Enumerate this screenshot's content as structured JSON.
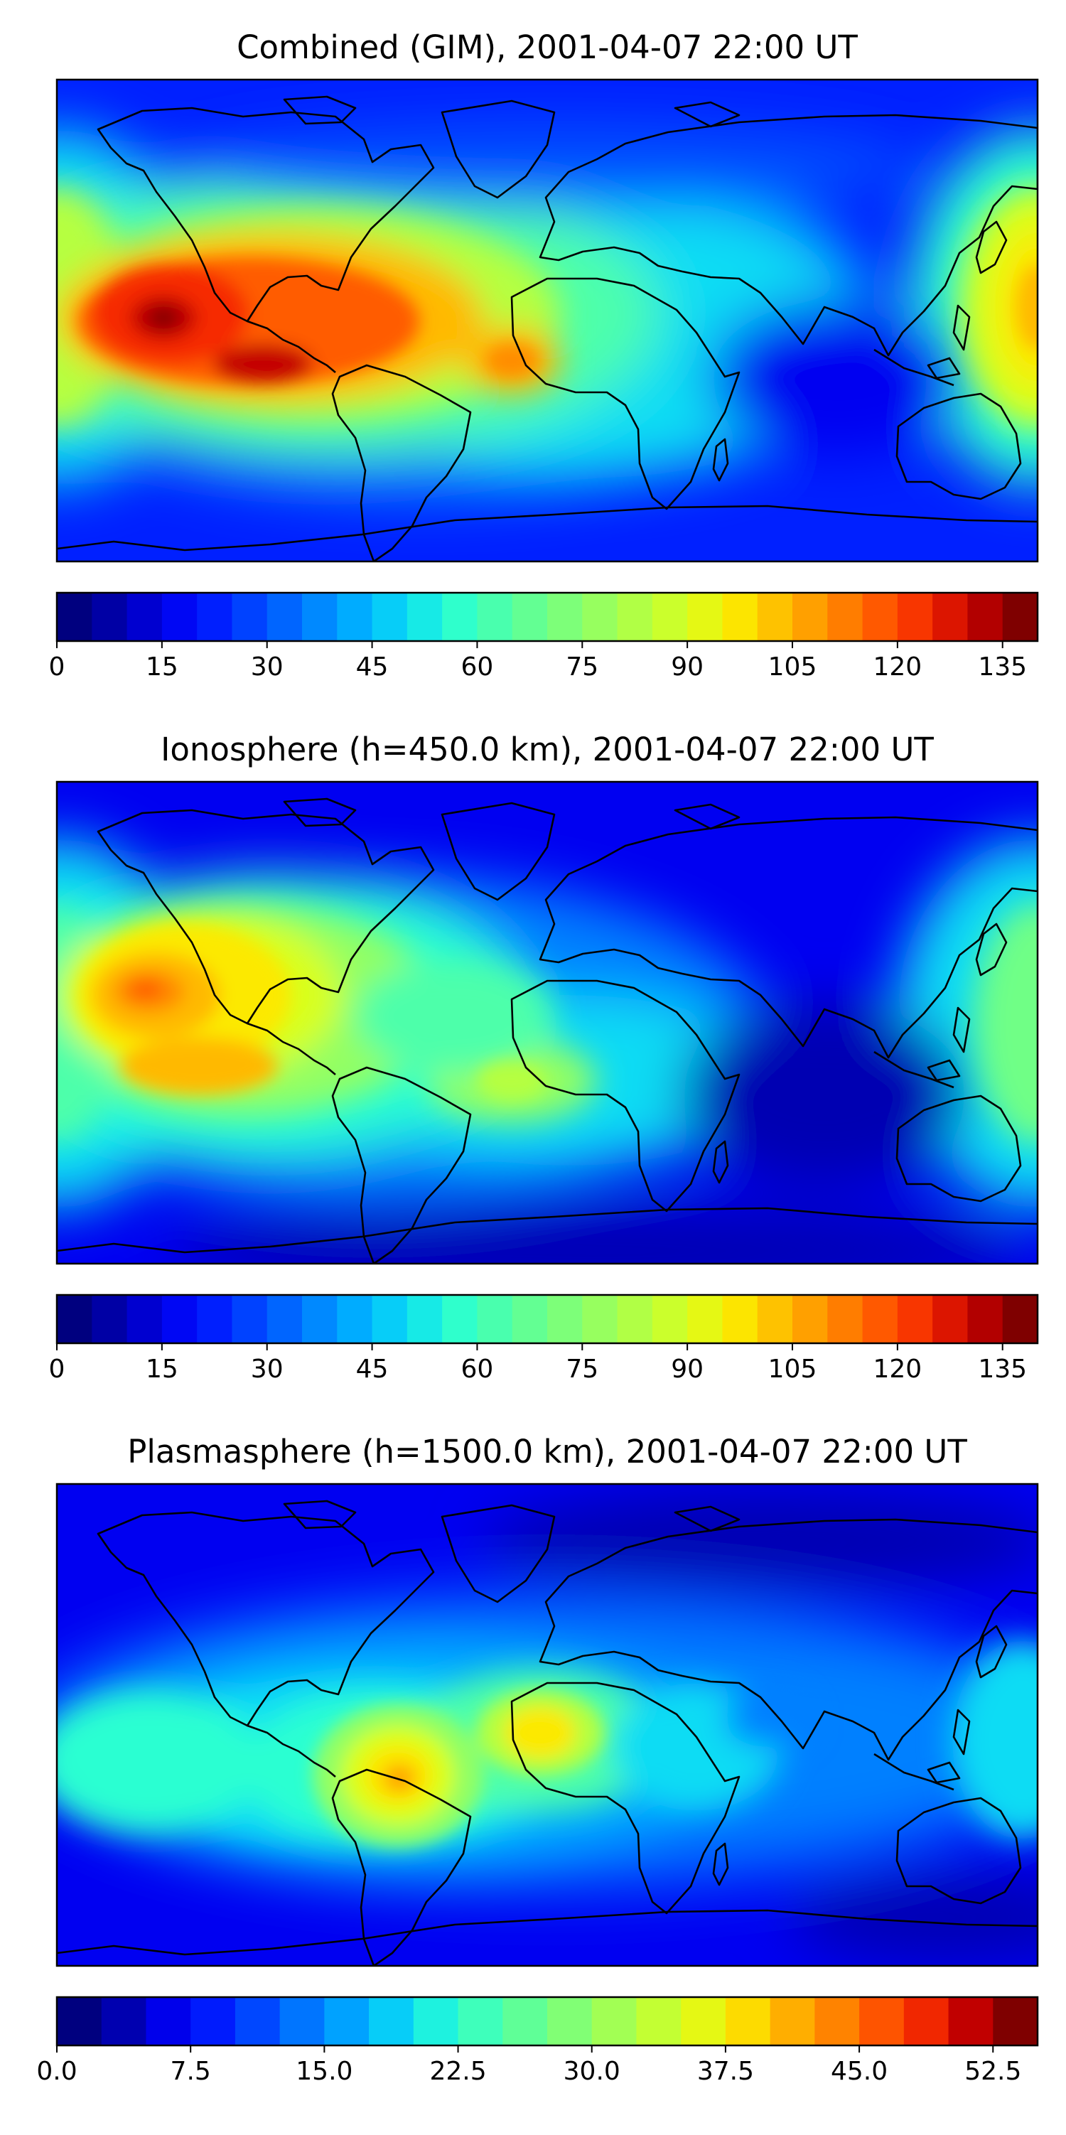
{
  "figure": {
    "panels": [
      {
        "title": "Combined (GIM), 2001-04-07 22:00 UT",
        "colorbar_ticks": [
          "0",
          "15",
          "30",
          "45",
          "60",
          "75",
          "90",
          "105",
          "120",
          "135"
        ]
      },
      {
        "title": "Ionosphere  (h=450.0 km), 2001-04-07 22:00 UT",
        "colorbar_ticks": [
          "0",
          "15",
          "30",
          "45",
          "60",
          "75",
          "90",
          "105",
          "120",
          "135"
        ]
      },
      {
        "title": "Plasmasphere (h=1500.0 km), 2001-04-07 22:00 UT",
        "colorbar_ticks": [
          "0.0",
          "7.5",
          "15.0",
          "22.5",
          "30.0",
          "37.5",
          "45.0",
          "52.5"
        ]
      }
    ]
  },
  "colors": {
    "jet": [
      "#00007f",
      "#0000b2",
      "#0000f1",
      "#0020ff",
      "#0050ff",
      "#0080ff",
      "#00b0ff",
      "#0adcf4",
      "#2affd2",
      "#4dffaa",
      "#70ff86",
      "#93ff63",
      "#b6ff40",
      "#d9ff1e",
      "#fce900",
      "#ffb900",
      "#ff8c00",
      "#ff5b00",
      "#f62b00",
      "#c40000",
      "#7f0000"
    ]
  },
  "chart_data": [
    {
      "type": "heatmap",
      "subtype": "global map contour",
      "title": "Combined (GIM), 2001-04-07 22:00 UT",
      "colorbar": {
        "vmin": 0,
        "vmax": 140,
        "levels": 28,
        "ticks": [
          0,
          15,
          30,
          45,
          60,
          75,
          90,
          105,
          120,
          135
        ]
      },
      "features": [
        {
          "region": "eastern Pacific off Central America",
          "value": 135
        },
        {
          "region": "Pacific west of South America",
          "value": 128
        },
        {
          "region": "Pacific south-west of Mexico",
          "value": 115
        },
        {
          "region": "tropical Atlantic west of Africa",
          "value": 105
        },
        {
          "region": "western Pacific east of Asia",
          "value": 85
        },
        {
          "region": "Indian Ocean / southern Asia",
          "value": 15
        }
      ]
    },
    {
      "type": "heatmap",
      "subtype": "global map contour",
      "title": "Ionosphere  (h=450.0 km), 2001-04-07 22:00 UT",
      "colorbar": {
        "vmin": 0,
        "vmax": 140,
        "levels": 28,
        "ticks": [
          0,
          15,
          30,
          45,
          60,
          75,
          90,
          105,
          120,
          135
        ]
      },
      "features": [
        {
          "region": "eastern Pacific off Mexico",
          "value": 110
        },
        {
          "region": "Pacific west of South America",
          "value": 95
        },
        {
          "region": "tropical Atlantic",
          "value": 70
        },
        {
          "region": "equatorial Africa",
          "value": 65
        },
        {
          "region": "western Pacific",
          "value": 60
        },
        {
          "region": "Indian Ocean",
          "value": 10
        }
      ]
    },
    {
      "type": "heatmap",
      "subtype": "global map contour",
      "title": "Plasmasphere (h=1500.0 km), 2001-04-07 22:00 UT",
      "colorbar": {
        "vmin": 0,
        "vmax": 55,
        "levels": 22,
        "ticks": [
          0.0,
          7.5,
          15.0,
          22.5,
          30.0,
          37.5,
          45.0,
          52.5
        ]
      },
      "features": [
        {
          "region": "central South America",
          "value": 44
        },
        {
          "region": "West Africa",
          "value": 37
        },
        {
          "region": "equatorial Pacific",
          "value": 25
        },
        {
          "region": "southern Indian Ocean",
          "value": 2
        },
        {
          "region": "northern Asia",
          "value": 3
        }
      ]
    }
  ]
}
